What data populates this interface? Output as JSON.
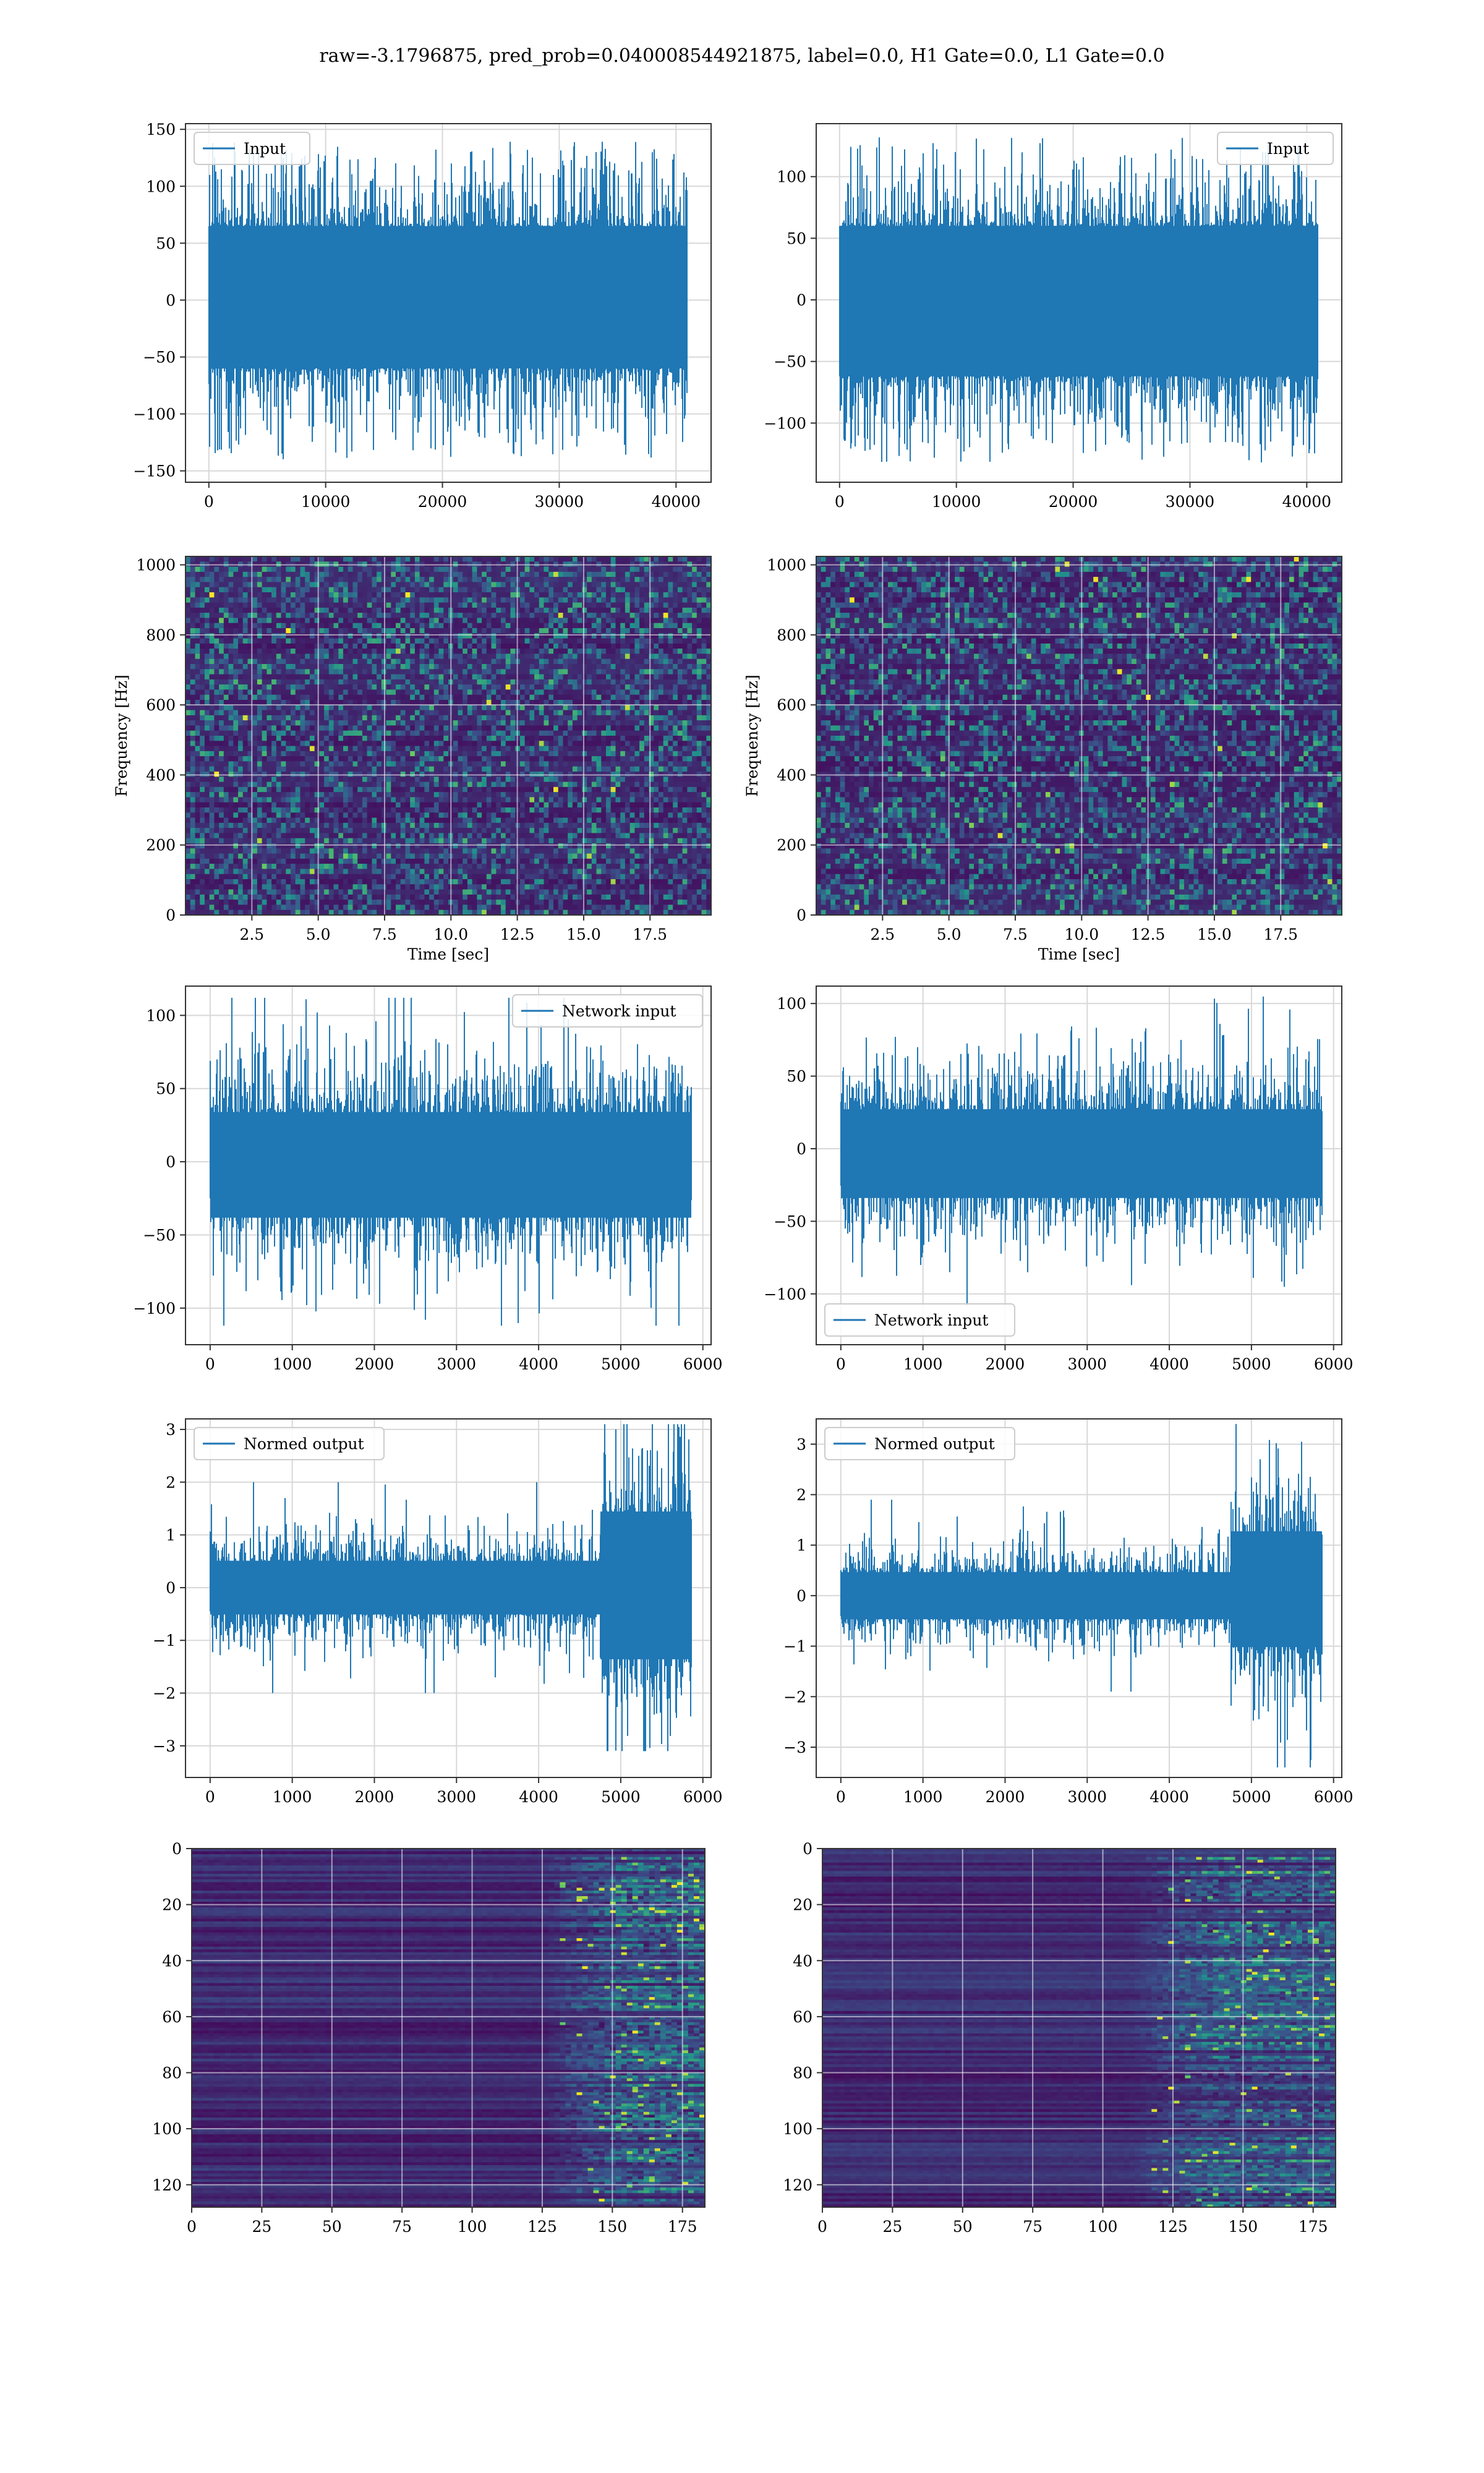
{
  "suptitle": "raw=-3.1796875, pred_prob=0.040008544921875, label=0.0, H1 Gate=0.0, L1 Gate=0.0",
  "colors": {
    "line": "#1f77b4",
    "grid": "#d8d8d8",
    "axes": "#333333"
  },
  "chart_data": [
    {
      "id": "input-left",
      "type": "line",
      "noise": "uniform",
      "xlim": [
        -2000,
        43000
      ],
      "ylim": [
        -160,
        155
      ],
      "xticks": [
        0,
        10000,
        20000,
        30000,
        40000
      ],
      "xticklabels": [
        "0",
        "10000",
        "20000",
        "30000",
        "40000"
      ],
      "yticks": [
        -150,
        -100,
        -50,
        0,
        50,
        100,
        150
      ],
      "yticklabels": [
        "−150",
        "−100",
        "−50",
        "0",
        "50",
        "100",
        "150"
      ],
      "xlabel": "",
      "ylabel": "",
      "legend": "upper-left",
      "grid": true,
      "series": [
        {
          "name": "Input",
          "x": [
            0,
            40960
          ],
          "band": [
            -60,
            65
          ],
          "max_abs": 140
        }
      ]
    },
    {
      "id": "input-right",
      "type": "line",
      "noise": "uniform",
      "xlim": [
        -2000,
        43000
      ],
      "ylim": [
        -148,
        143
      ],
      "xticks": [
        0,
        10000,
        20000,
        30000,
        40000
      ],
      "xticklabels": [
        "0",
        "10000",
        "20000",
        "30000",
        "40000"
      ],
      "yticks": [
        -100,
        -50,
        0,
        50,
        100
      ],
      "yticklabels": [
        "−100",
        "−50",
        "0",
        "50",
        "100"
      ],
      "xlabel": "",
      "ylabel": "",
      "legend": "upper-right",
      "grid": true,
      "series": [
        {
          "name": "Input",
          "x": [
            0,
            40960
          ],
          "band": [
            -62,
            60
          ],
          "max_abs": 132
        }
      ]
    },
    {
      "id": "spec-left",
      "type": "heatmap",
      "style": "spectrogram",
      "xlim": [
        0,
        19.8
      ],
      "ylim": [
        0,
        1024
      ],
      "xticks": [
        2.5,
        5.0,
        7.5,
        10.0,
        12.5,
        15.0,
        17.5
      ],
      "xticklabels": [
        "2.5",
        "5.0",
        "7.5",
        "10.0",
        "12.5",
        "15.0",
        "17.5"
      ],
      "yticks": [
        0,
        200,
        400,
        600,
        800,
        1000
      ],
      "yticklabels": [
        "0",
        "200",
        "400",
        "600",
        "800",
        "1000"
      ],
      "xlabel": "Time [sec]",
      "ylabel": "Frequency [Hz]",
      "grid": true
    },
    {
      "id": "spec-right",
      "type": "heatmap",
      "style": "spectrogram",
      "xlim": [
        0,
        19.8
      ],
      "ylim": [
        0,
        1024
      ],
      "xticks": [
        2.5,
        5.0,
        7.5,
        10.0,
        12.5,
        15.0,
        17.5
      ],
      "xticklabels": [
        "2.5",
        "5.0",
        "7.5",
        "10.0",
        "12.5",
        "15.0",
        "17.5"
      ],
      "yticks": [
        0,
        200,
        400,
        600,
        800,
        1000
      ],
      "yticklabels": [
        "0",
        "200",
        "400",
        "600",
        "800",
        "1000"
      ],
      "xlabel": "Time [sec]",
      "ylabel": "Frequency [Hz]",
      "grid": true
    },
    {
      "id": "net-left",
      "type": "line",
      "noise": "gauss",
      "xlim": [
        -300,
        6100
      ],
      "ylim": [
        -125,
        120
      ],
      "xticks": [
        0,
        1000,
        2000,
        3000,
        4000,
        5000,
        6000
      ],
      "xticklabels": [
        "0",
        "1000",
        "2000",
        "3000",
        "4000",
        "5000",
        "6000"
      ],
      "yticks": [
        -100,
        -50,
        0,
        50,
        100
      ],
      "yticklabels": [
        "−100",
        "−50",
        "0",
        "50",
        "100"
      ],
      "xlabel": "",
      "ylabel": "",
      "legend": "upper-right",
      "grid": true,
      "series": [
        {
          "name": "Network input",
          "x": [
            0,
            5856
          ],
          "band": [
            -45,
            40
          ],
          "max_abs": 112
        }
      ]
    },
    {
      "id": "net-right",
      "type": "line",
      "noise": "gauss",
      "xlim": [
        -300,
        6100
      ],
      "ylim": [
        -135,
        112
      ],
      "xticks": [
        0,
        1000,
        2000,
        3000,
        4000,
        5000,
        6000
      ],
      "xticklabels": [
        "0",
        "1000",
        "2000",
        "3000",
        "4000",
        "5000",
        "6000"
      ],
      "yticks": [
        -100,
        -50,
        0,
        50,
        100
      ],
      "yticklabels": [
        "−100",
        "−50",
        "0",
        "50",
        "100"
      ],
      "xlabel": "",
      "ylabel": "",
      "legend": "lower-left",
      "grid": true,
      "series": [
        {
          "name": "Network input",
          "x": [
            0,
            5856
          ],
          "band": [
            -40,
            32
          ],
          "max_abs": 108
        }
      ]
    },
    {
      "id": "norm-left",
      "type": "line",
      "noise": "gauss",
      "xlim": [
        -300,
        6100
      ],
      "ylim": [
        -3.6,
        3.2
      ],
      "xticks": [
        0,
        1000,
        2000,
        3000,
        4000,
        5000,
        6000
      ],
      "xticklabels": [
        "0",
        "1000",
        "2000",
        "3000",
        "4000",
        "5000",
        "6000"
      ],
      "yticks": [
        -3,
        -2,
        -1,
        0,
        1,
        2,
        3
      ],
      "yticklabels": [
        "−3",
        "−2",
        "−1",
        "0",
        "1",
        "2",
        "3"
      ],
      "xlabel": "",
      "ylabel": "",
      "legend": "upper-left",
      "grid": true,
      "series": [
        {
          "name": "Normed output",
          "x": [
            0,
            5856
          ],
          "band": [
            -0.6,
            0.6
          ],
          "max_abs": 2.0,
          "burst": {
            "from": 4750,
            "band": [
              -1.6,
              1.7
            ],
            "max_abs": 3.1
          }
        }
      ]
    },
    {
      "id": "norm-right",
      "type": "line",
      "noise": "gauss",
      "xlim": [
        -300,
        6100
      ],
      "ylim": [
        -3.6,
        3.5
      ],
      "xticks": [
        0,
        1000,
        2000,
        3000,
        4000,
        5000,
        6000
      ],
      "xticklabels": [
        "0",
        "1000",
        "2000",
        "3000",
        "4000",
        "5000",
        "6000"
      ],
      "yticks": [
        -3,
        -2,
        -1,
        0,
        1,
        2,
        3
      ],
      "yticklabels": [
        "−3",
        "−2",
        "−1",
        "0",
        "1",
        "2",
        "3"
      ],
      "xlabel": "",
      "ylabel": "",
      "legend": "upper-left",
      "grid": true,
      "series": [
        {
          "name": "Normed output",
          "x": [
            0,
            5856
          ],
          "band": [
            -0.55,
            0.55
          ],
          "max_abs": 1.9,
          "burst": {
            "from": 4750,
            "band": [
              -1.2,
              1.5
            ],
            "max_abs": 3.4
          }
        }
      ]
    },
    {
      "id": "feat-left",
      "type": "heatmap",
      "style": "features",
      "xlim": [
        0,
        183
      ],
      "ylim": [
        128,
        0
      ],
      "rows": 128,
      "cols": 183,
      "active_from": 140,
      "xticks": [
        0,
        25,
        50,
        75,
        100,
        125,
        150,
        175
      ],
      "xticklabels": [
        "0",
        "25",
        "50",
        "75",
        "100",
        "125",
        "150",
        "175"
      ],
      "yticks": [
        0,
        20,
        40,
        60,
        80,
        100,
        120
      ],
      "yticklabels": [
        "0",
        "20",
        "40",
        "60",
        "80",
        "100",
        "120"
      ],
      "xlabel": "",
      "ylabel": "",
      "grid": true
    },
    {
      "id": "feat-right",
      "type": "heatmap",
      "style": "features",
      "xlim": [
        0,
        183
      ],
      "ylim": [
        128,
        0
      ],
      "rows": 128,
      "cols": 183,
      "active_from": 125,
      "xticks": [
        0,
        25,
        50,
        75,
        100,
        125,
        150,
        175
      ],
      "xticklabels": [
        "0",
        "25",
        "50",
        "75",
        "100",
        "125",
        "150",
        "175"
      ],
      "yticks": [
        0,
        20,
        40,
        60,
        80,
        100,
        120
      ],
      "yticklabels": [
        "0",
        "20",
        "40",
        "60",
        "80",
        "100",
        "120"
      ],
      "xlabel": "",
      "ylabel": "",
      "grid": true
    }
  ]
}
